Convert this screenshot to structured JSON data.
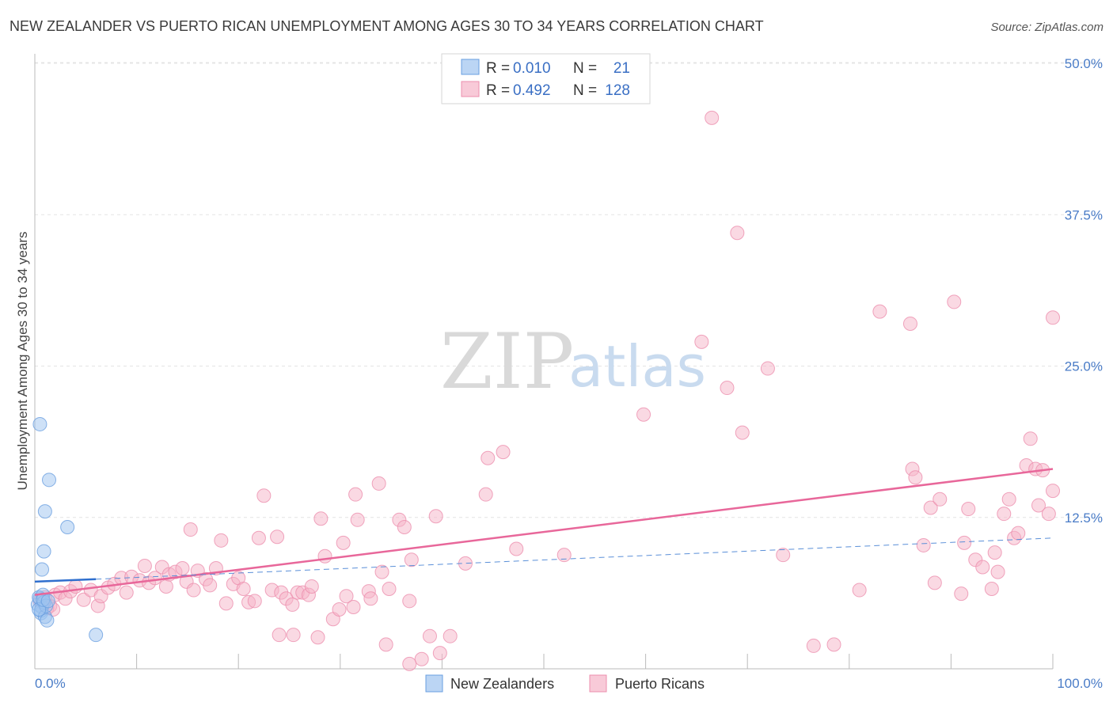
{
  "chart_data": {
    "type": "scatter",
    "title": "NEW ZEALANDER VS PUERTO RICAN UNEMPLOYMENT AMONG AGES 30 TO 34 YEARS CORRELATION CHART",
    "source": "Source: ZipAtlas.com",
    "xlabel": "",
    "ylabel": "Unemployment Among Ages 30 to 34 years",
    "xlim": [
      0,
      100
    ],
    "ylim": [
      0,
      50
    ],
    "x_tick_labels": [
      "0.0%",
      "100.0%"
    ],
    "y_ticks": [
      12.5,
      25.0,
      37.5,
      50.0
    ],
    "y_tick_labels": [
      "12.5%",
      "25.0%",
      "37.5%",
      "50.0%"
    ],
    "watermark": {
      "part1": "ZIP",
      "part2": "atlas"
    },
    "legend": {
      "r_label": "R =",
      "n_label": "N =",
      "entries": [
        {
          "r": "0.010",
          "n": "21",
          "color": "#9ec3ef"
        },
        {
          "r": "0.492",
          "n": "128",
          "color": "#f5b3c8"
        }
      ]
    },
    "series": [
      {
        "name": "New Zealanders",
        "color": "#9ec3ef",
        "edge": "#6a9fe0",
        "trend": {
          "x": [
            0,
            6
          ],
          "y": [
            7.2,
            7.4
          ],
          "color": "#2f6fce"
        },
        "trend_ext": {
          "x": [
            6,
            100
          ],
          "y": [
            7.4,
            10.8
          ],
          "color": "#5a8fd8"
        },
        "points": [
          [
            0.3,
            5.3
          ],
          [
            0.5,
            5.8
          ],
          [
            0.6,
            4.6
          ],
          [
            0.7,
            5.1
          ],
          [
            0.4,
            5.9
          ],
          [
            0.8,
            6.1
          ],
          [
            0.6,
            4.8
          ],
          [
            0.9,
            5.5
          ],
          [
            1.0,
            4.3
          ],
          [
            1.2,
            4.0
          ],
          [
            0.5,
            20.2
          ],
          [
            1.4,
            15.6
          ],
          [
            1.0,
            13.0
          ],
          [
            3.2,
            11.7
          ],
          [
            0.9,
            9.7
          ],
          [
            0.7,
            8.2
          ],
          [
            6.0,
            2.8
          ],
          [
            1.1,
            5.2
          ],
          [
            0.4,
            4.9
          ],
          [
            0.8,
            5.7
          ],
          [
            1.3,
            5.6
          ]
        ]
      },
      {
        "name": "Puerto Ricans",
        "color": "#f5b3c8",
        "edge": "#ec8fae",
        "trend": {
          "x": [
            0,
            100
          ],
          "y": [
            6.1,
            16.5
          ],
          "color": "#e8679a"
        },
        "points": [
          [
            0.5,
            5.6
          ],
          [
            1.0,
            5.9
          ],
          [
            1.5,
            5.2
          ],
          [
            2.0,
            6.1
          ],
          [
            2.5,
            6.3
          ],
          [
            1.2,
            5.0
          ],
          [
            3.0,
            5.8
          ],
          [
            3.5,
            6.4
          ],
          [
            4.0,
            6.8
          ],
          [
            4.8,
            5.7
          ],
          [
            5.5,
            6.5
          ],
          [
            6.2,
            5.2
          ],
          [
            6.5,
            6.0
          ],
          [
            7.2,
            6.7
          ],
          [
            7.8,
            7.0
          ],
          [
            8.5,
            7.5
          ],
          [
            9.0,
            6.3
          ],
          [
            9.5,
            7.6
          ],
          [
            10.3,
            7.3
          ],
          [
            10.8,
            8.5
          ],
          [
            11.2,
            7.1
          ],
          [
            11.8,
            7.5
          ],
          [
            12.5,
            8.4
          ],
          [
            12.9,
            6.8
          ],
          [
            13.2,
            7.8
          ],
          [
            13.8,
            8.0
          ],
          [
            14.5,
            8.3
          ],
          [
            14.9,
            7.2
          ],
          [
            15.6,
            6.5
          ],
          [
            15.3,
            11.5
          ],
          [
            16.0,
            8.1
          ],
          [
            16.8,
            7.4
          ],
          [
            17.2,
            6.9
          ],
          [
            17.8,
            8.3
          ],
          [
            18.3,
            10.6
          ],
          [
            18.8,
            5.4
          ],
          [
            19.5,
            7.0
          ],
          [
            20.0,
            7.5
          ],
          [
            20.5,
            6.6
          ],
          [
            21.0,
            5.5
          ],
          [
            21.6,
            5.6
          ],
          [
            22.0,
            10.8
          ],
          [
            22.5,
            14.3
          ],
          [
            23.3,
            6.5
          ],
          [
            23.8,
            10.9
          ],
          [
            24.2,
            6.3
          ],
          [
            24.7,
            5.8
          ],
          [
            25.3,
            5.3
          ],
          [
            25.8,
            6.3
          ],
          [
            26.3,
            6.3
          ],
          [
            26.9,
            6.1
          ],
          [
            27.2,
            6.8
          ],
          [
            24.0,
            2.8
          ],
          [
            27.8,
            2.6
          ],
          [
            28.5,
            9.3
          ],
          [
            28.1,
            12.4
          ],
          [
            29.3,
            4.1
          ],
          [
            29.9,
            4.9
          ],
          [
            30.3,
            10.4
          ],
          [
            30.6,
            6.0
          ],
          [
            31.3,
            5.1
          ],
          [
            31.7,
            12.3
          ],
          [
            32.8,
            6.4
          ],
          [
            33.0,
            5.8
          ],
          [
            33.8,
            15.3
          ],
          [
            34.1,
            8.0
          ],
          [
            34.8,
            6.6
          ],
          [
            35.8,
            12.3
          ],
          [
            36.3,
            11.7
          ],
          [
            37.0,
            9.0
          ],
          [
            36.8,
            5.6
          ],
          [
            38.8,
            2.7
          ],
          [
            39.8,
            1.3
          ],
          [
            40.8,
            2.7
          ],
          [
            31.5,
            14.4
          ],
          [
            25.4,
            2.8
          ],
          [
            34.5,
            2.0
          ],
          [
            38.0,
            0.8
          ],
          [
            44.5,
            17.4
          ],
          [
            46.0,
            17.9
          ],
          [
            44.3,
            14.4
          ],
          [
            47.3,
            9.9
          ],
          [
            39.4,
            12.6
          ],
          [
            36.8,
            0.4
          ],
          [
            42.3,
            8.7
          ],
          [
            52.0,
            9.4
          ],
          [
            59.8,
            21.0
          ],
          [
            65.5,
            27.0
          ],
          [
            68.0,
            23.2
          ],
          [
            69.5,
            19.5
          ],
          [
            66.5,
            45.5
          ],
          [
            69.0,
            36.0
          ],
          [
            72.0,
            24.8
          ],
          [
            73.5,
            9.4
          ],
          [
            76.5,
            1.9
          ],
          [
            78.5,
            2.0
          ],
          [
            81.0,
            6.5
          ],
          [
            83.0,
            29.5
          ],
          [
            86.0,
            28.5
          ],
          [
            86.2,
            16.5
          ],
          [
            86.5,
            15.8
          ],
          [
            87.3,
            10.2
          ],
          [
            88.0,
            13.3
          ],
          [
            88.4,
            7.1
          ],
          [
            88.9,
            14.0
          ],
          [
            90.3,
            30.3
          ],
          [
            91.0,
            6.2
          ],
          [
            91.3,
            10.4
          ],
          [
            91.7,
            13.2
          ],
          [
            92.4,
            9.0
          ],
          [
            93.1,
            8.4
          ],
          [
            94.0,
            6.6
          ],
          [
            94.3,
            9.6
          ],
          [
            94.6,
            8.0
          ],
          [
            95.2,
            12.8
          ],
          [
            95.7,
            14.0
          ],
          [
            96.2,
            10.8
          ],
          [
            96.6,
            11.2
          ],
          [
            97.4,
            16.8
          ],
          [
            97.8,
            19.0
          ],
          [
            98.3,
            16.5
          ],
          [
            98.6,
            13.5
          ],
          [
            99.0,
            16.4
          ],
          [
            99.6,
            12.8
          ],
          [
            100.0,
            14.7
          ],
          [
            100.0,
            29.0
          ],
          [
            0.8,
            5.4
          ],
          [
            1.8,
            4.9
          ]
        ]
      }
    ]
  }
}
